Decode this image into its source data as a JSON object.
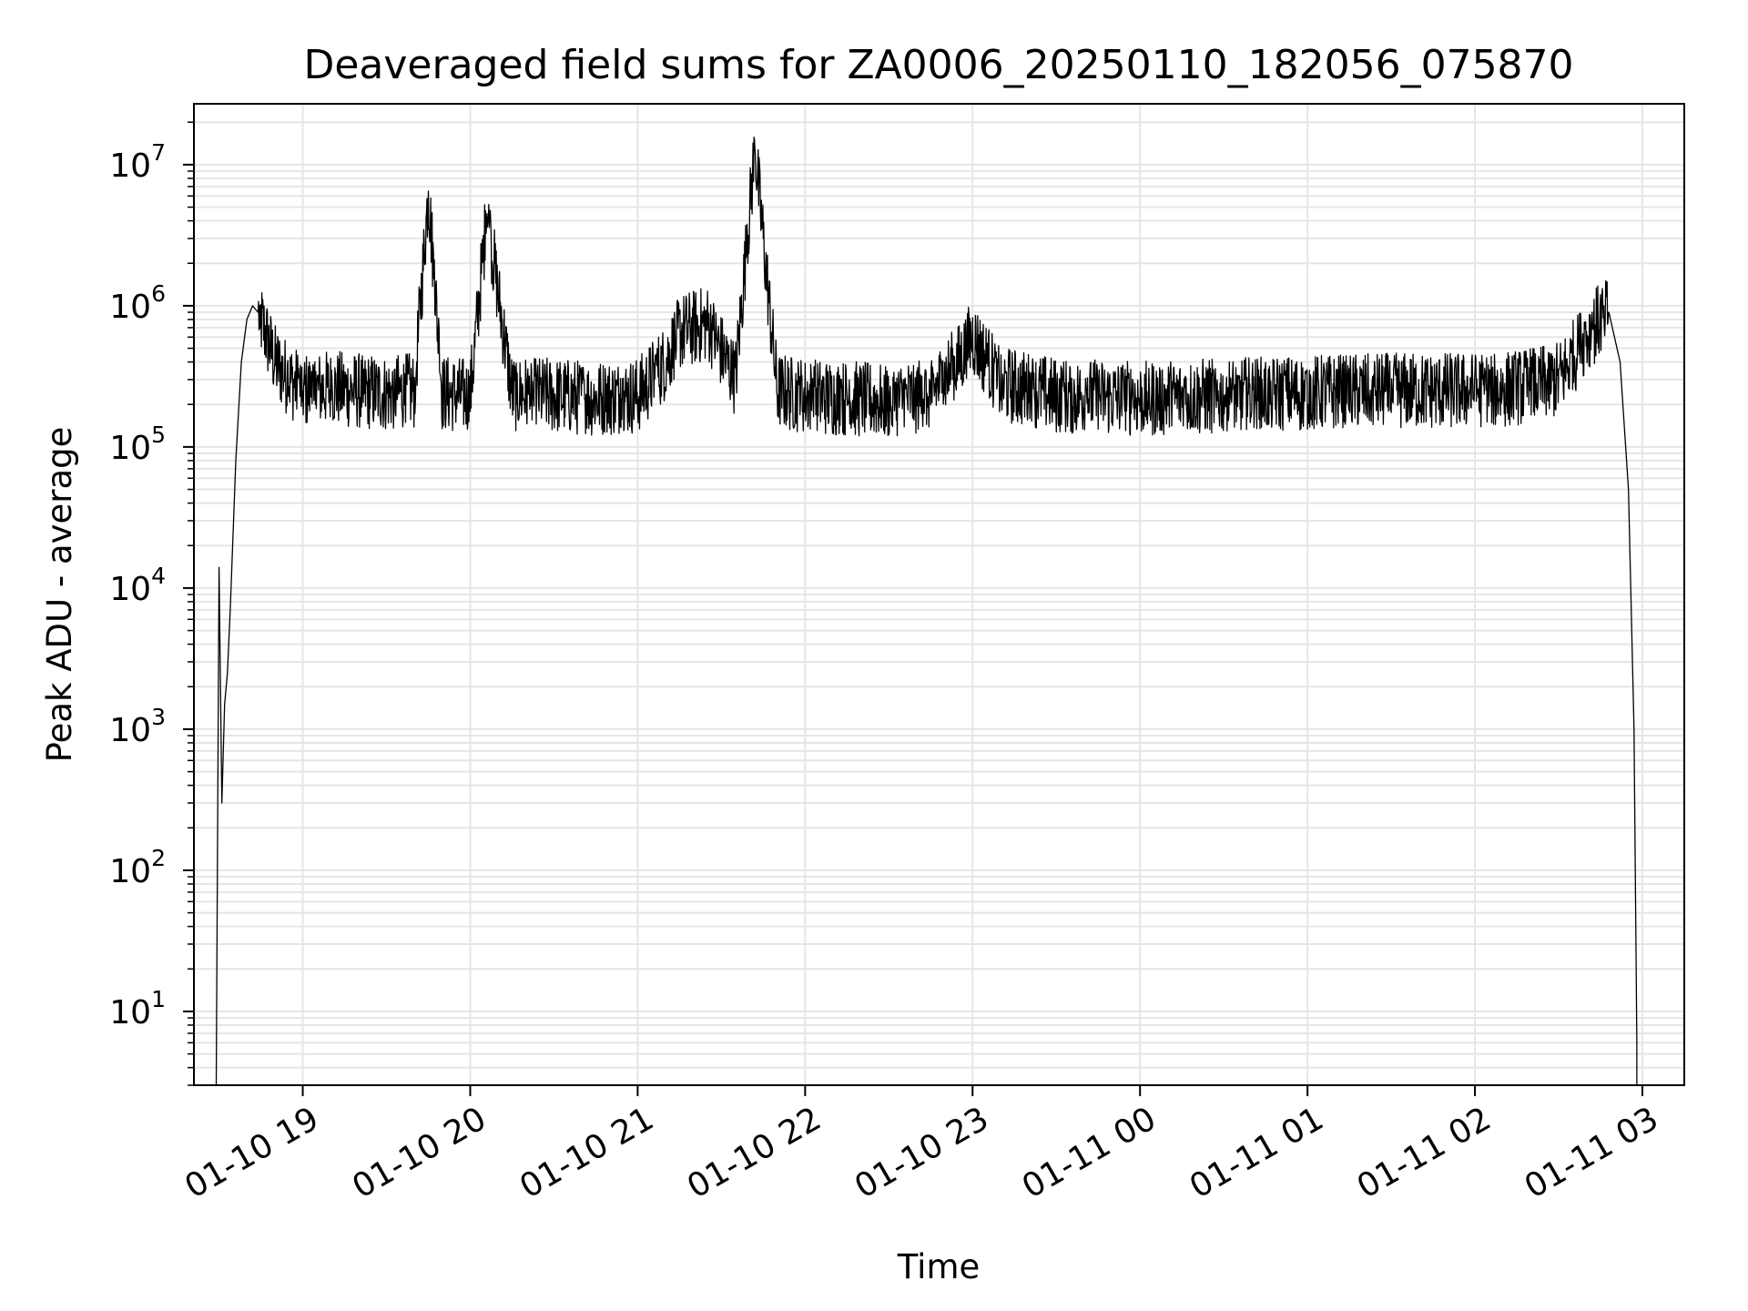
{
  "chart_data": {
    "type": "line",
    "title": "Deaveraged field sums for ZA0006_20250110_182056_075870",
    "xlabel": "Time",
    "ylabel": "Peak ADU - average",
    "yscale": "log",
    "grid": true,
    "grid_minor": true,
    "line_color": "#000000",
    "grid_color": "#e5e5e5",
    "xlim": [
      "2025-01-10 18:21",
      "2025-01-11 03:15"
    ],
    "ylim": [
      3,
      27000000
    ],
    "x_ticks": [
      "2025-01-10 19:00",
      "2025-01-10 20:00",
      "2025-01-10 21:00",
      "2025-01-10 22:00",
      "2025-01-10 23:00",
      "2025-01-11 00:00",
      "2025-01-11 01:00",
      "2025-01-11 02:00",
      "2025-01-11 03:00"
    ],
    "x_tick_labels": [
      "01-10 19",
      "01-10 20",
      "01-10 21",
      "01-10 22",
      "01-10 23",
      "01-11 00",
      "01-11 01",
      "01-11 02",
      "01-11 03"
    ],
    "y_ticks": [
      {
        "value": 10,
        "base": "10",
        "exp": "1"
      },
      {
        "value": 100,
        "base": "10",
        "exp": "2"
      },
      {
        "value": 1000,
        "base": "10",
        "exp": "3"
      },
      {
        "value": 10000,
        "base": "10",
        "exp": "4"
      },
      {
        "value": 100000,
        "base": "10",
        "exp": "5"
      },
      {
        "value": 1000000,
        "base": "10",
        "exp": "6"
      },
      {
        "value": 10000000,
        "base": "10",
        "exp": "7"
      }
    ],
    "series": [
      {
        "x": [
          "2025-01-10 18:29",
          "2025-01-10 18:30",
          "2025-01-10 18:31",
          "2025-01-10 18:32",
          "2025-01-10 18:33",
          "2025-01-10 18:34",
          "2025-01-10 18:36",
          "2025-01-10 18:38",
          "2025-01-10 18:40",
          "2025-01-10 18:42",
          "2025-01-10 18:44",
          "2025-01-10 18:46",
          "2025-01-10 18:50",
          "2025-01-10 18:55",
          "2025-01-10 19:00",
          "2025-01-10 19:10",
          "2025-01-10 19:20",
          "2025-01-10 19:30",
          "2025-01-10 19:40",
          "2025-01-10 19:45",
          "2025-01-10 19:50",
          "2025-01-10 20:00",
          "2025-01-10 20:06",
          "2025-01-10 20:15",
          "2025-01-10 20:30",
          "2025-01-10 20:45",
          "2025-01-10 21:00",
          "2025-01-10 21:10",
          "2025-01-10 21:15",
          "2025-01-10 21:25",
          "2025-01-10 21:35",
          "2025-01-10 21:42",
          "2025-01-10 21:50",
          "2025-01-10 22:00",
          "2025-01-10 22:15",
          "2025-01-10 22:30",
          "2025-01-10 22:45",
          "2025-01-10 22:55",
          "2025-01-10 23:00",
          "2025-01-10 23:10",
          "2025-01-10 23:30",
          "2025-01-11 00:00",
          "2025-01-11 00:30",
          "2025-01-11 01:00",
          "2025-01-11 01:30",
          "2025-01-11 02:00",
          "2025-01-11 02:15",
          "2025-01-11 02:30",
          "2025-01-11 02:40",
          "2025-01-11 02:45",
          "2025-01-11 02:48",
          "2025-01-11 02:52",
          "2025-01-11 02:55",
          "2025-01-11 02:57",
          "2025-01-11 02:58"
        ],
        "y": [
          3,
          14000,
          300,
          1500,
          2500,
          7000,
          80000,
          400000,
          800000,
          1000000,
          900000,
          700000,
          400000,
          300000,
          250000,
          260000,
          250000,
          240000,
          250000,
          6500000,
          240000,
          230000,
          4500000,
          240000,
          230000,
          220000,
          230000,
          400000,
          650000,
          750000,
          300000,
          13000000,
          250000,
          230000,
          220000,
          210000,
          240000,
          400000,
          600000,
          280000,
          230000,
          220000,
          230000,
          240000,
          250000,
          250000,
          260000,
          300000,
          600000,
          800000,
          900000,
          400000,
          50000,
          1000,
          6
        ]
      }
    ]
  }
}
